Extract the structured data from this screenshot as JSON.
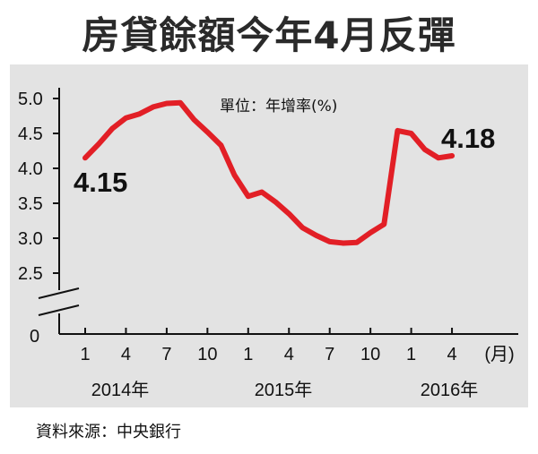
{
  "title": "房貸餘額今年4月反彈",
  "source": "資料來源：中央銀行",
  "chart_data": {
    "type": "line",
    "unit_label": "單位：年增率(%)",
    "color": "#e21f26",
    "x_labels": [
      "1",
      "4",
      "7",
      "10",
      "1",
      "4",
      "7",
      "10",
      "1",
      "4"
    ],
    "x_unit": "(月)",
    "year_labels": [
      "2014年",
      "2015年",
      "2016年"
    ],
    "y_ticks": [
      "5.0",
      "4.5",
      "4.0",
      "3.5",
      "3.0",
      "2.5"
    ],
    "y_zero": "0",
    "ylim": [
      2.5,
      5.0
    ],
    "axis_break": true,
    "series": [
      {
        "x": [
          "2014-01",
          "2014-02",
          "2014-03",
          "2014-04",
          "2014-05",
          "2014-06",
          "2014-07",
          "2014-08",
          "2014-09",
          "2014-10",
          "2014-11",
          "2014-12",
          "2015-01",
          "2015-02",
          "2015-03",
          "2015-04",
          "2015-05",
          "2015-06",
          "2015-07",
          "2015-08",
          "2015-09",
          "2015-10",
          "2015-11",
          "2015-12",
          "2016-01",
          "2016-02",
          "2016-03",
          "2016-04"
        ],
        "values": [
          4.15,
          4.35,
          4.57,
          4.72,
          4.78,
          4.88,
          4.93,
          4.94,
          4.7,
          4.52,
          4.33,
          3.9,
          3.6,
          3.66,
          3.52,
          3.35,
          3.15,
          3.04,
          2.95,
          2.93,
          2.94,
          3.08,
          3.2,
          4.54,
          4.5,
          4.27,
          4.15,
          4.18
        ]
      }
    ],
    "data_labels": [
      {
        "text": "4.15",
        "value": 4.15,
        "x": "2014-01"
      },
      {
        "text": "4.18",
        "value": 4.18,
        "x": "2016-04"
      }
    ]
  }
}
